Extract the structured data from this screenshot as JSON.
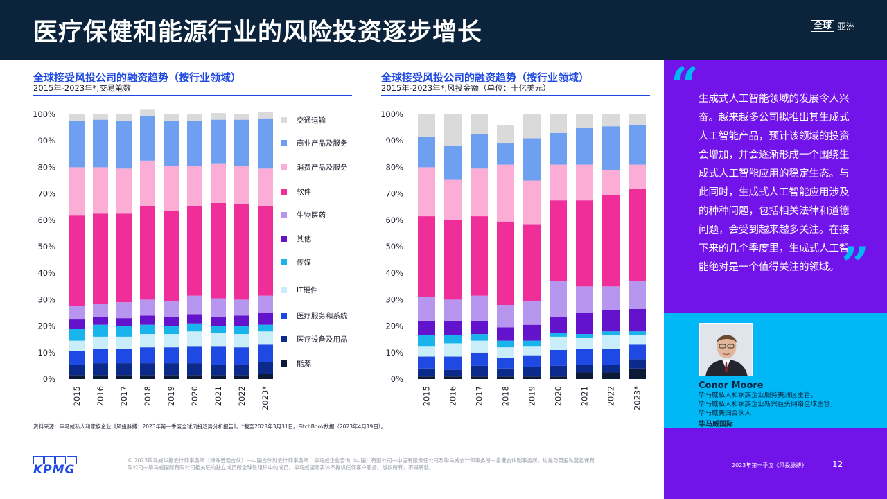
{
  "header": {
    "title": "医疗保健和能源行业的风险投资逐步增长",
    "brand_box": "全球",
    "brand_region": "亚洲"
  },
  "colors": {
    "header_bg": "#0c233c",
    "accent_blue": "#1e49e2",
    "purple": "#7213ea",
    "cyan": "#00b8f5"
  },
  "categories": [
    "交通运输",
    "商业产品及服务",
    "消费产品及服务",
    "软件",
    "生物医药",
    "其他",
    "传媒",
    "IT硬件",
    "医疗服务和系统",
    "医疗设备及用品",
    "能源"
  ],
  "category_colors": [
    "#dadada",
    "#6f9ff0",
    "#fcadd5",
    "#f02e9a",
    "#b696ee",
    "#6413cc",
    "#1ab4ec",
    "#c9eef9",
    "#1e49e2",
    "#0c2a8c",
    "#0c1a38"
  ],
  "chart_data": [
    {
      "type": "bar",
      "stacked": true,
      "title": "全球接受风投公司的融资趋势（按行业领域）",
      "subtitle": "2015年-2023年*,交易笔数",
      "x": [
        "2015",
        "2016",
        "2017",
        "2018",
        "2019",
        "2020",
        "2021",
        "2022",
        "2023*"
      ],
      "y_ticks": [
        "0%",
        "10%",
        "20%",
        "30%",
        "40%",
        "50%",
        "60%",
        "70%",
        "80%",
        "90%",
        "100%"
      ],
      "ylim": [
        0,
        100
      ],
      "series": [
        {
          "name": "能源",
          "values": [
            1.5,
            1.5,
            1.5,
            1.5,
            1.5,
            1.5,
            1.5,
            1.5,
            2
          ]
        },
        {
          "name": "医疗设备及用品",
          "values": [
            4,
            4.5,
            4.5,
            4.5,
            4.5,
            4.5,
            4,
            4,
            4.5
          ]
        },
        {
          "name": "医疗服务和系统",
          "values": [
            5,
            5.5,
            5.5,
            6,
            6,
            6.5,
            7,
            6.5,
            6.5
          ]
        },
        {
          "name": "IT硬件",
          "values": [
            4,
            4.5,
            4.5,
            5,
            5,
            5.5,
            5,
            5,
            5
          ]
        },
        {
          "name": "传媒",
          "values": [
            4.5,
            4.5,
            4,
            3.5,
            3,
            3,
            2.5,
            3,
            2.5
          ]
        },
        {
          "name": "其他",
          "values": [
            3.5,
            3,
            3,
            3.5,
            3.5,
            3.5,
            3.5,
            4,
            4.5
          ]
        },
        {
          "name": "生物医药",
          "values": [
            5,
            5,
            6,
            6,
            6,
            7,
            7,
            6,
            6.5
          ]
        },
        {
          "name": "软件",
          "values": [
            34.5,
            34,
            33.5,
            35.5,
            34,
            34,
            36,
            36,
            34
          ]
        },
        {
          "name": "消费产品及服务",
          "values": [
            18,
            17.5,
            17,
            17,
            17,
            15,
            15,
            14.5,
            14
          ]
        },
        {
          "name": "商业产品及服务",
          "values": [
            17.5,
            18,
            18,
            17,
            17,
            17,
            16.5,
            17.5,
            19
          ]
        },
        {
          "name": "交通运输",
          "values": [
            2.5,
            2,
            2.5,
            2.5,
            2.5,
            2.5,
            2.5,
            2,
            2.5
          ]
        }
      ]
    },
    {
      "type": "bar",
      "stacked": true,
      "title": "全球接受风投公司的融资趋势（按行业领域）",
      "subtitle": "2015年-2023年*,风投金额（单位：十亿美元）",
      "x": [
        "2015",
        "2016",
        "2017",
        "2018",
        "2019",
        "2020",
        "2021",
        "2022",
        "2023*"
      ],
      "y_ticks": [
        "0%",
        "10%",
        "20%",
        "30%",
        "40%",
        "50%",
        "60%",
        "70%",
        "80%",
        "90%",
        "100%"
      ],
      "ylim": [
        0,
        100
      ],
      "series": [
        {
          "name": "能源",
          "values": [
            1,
            1,
            1,
            1,
            1,
            1,
            2.5,
            2.5,
            4
          ]
        },
        {
          "name": "医疗设备及用品",
          "values": [
            3,
            2.5,
            4,
            3,
            3.5,
            4,
            3,
            3,
            3.5
          ]
        },
        {
          "name": "医疗服务和系统",
          "values": [
            4.5,
            5,
            5,
            4,
            4.5,
            6,
            6,
            6,
            5.5
          ]
        },
        {
          "name": "IT硬件",
          "values": [
            4,
            5,
            4.5,
            4,
            3.5,
            5,
            4,
            5,
            3.5
          ]
        },
        {
          "name": "传媒",
          "values": [
            4,
            3,
            2.5,
            2.5,
            2,
            1.5,
            1.5,
            1.5,
            1.5
          ]
        },
        {
          "name": "其他",
          "values": [
            5.5,
            5.5,
            5,
            5,
            6,
            6,
            8,
            8,
            8.5
          ]
        },
        {
          "name": "生物医药",
          "values": [
            9,
            8,
            9.5,
            8.5,
            9,
            13.5,
            10,
            9,
            10.5
          ]
        },
        {
          "name": "软件",
          "values": [
            30.5,
            30,
            30,
            31.5,
            29,
            30.5,
            32.5,
            34.5,
            35
          ]
        },
        {
          "name": "消费产品及服务",
          "values": [
            18.5,
            15.5,
            18,
            21.5,
            16.5,
            13.5,
            13.5,
            9.5,
            9
          ]
        },
        {
          "name": "商业产品及服务",
          "values": [
            11.5,
            12.5,
            13,
            8,
            16,
            12,
            14,
            16.5,
            15
          ]
        },
        {
          "name": "交通运输",
          "values": [
            8.5,
            12,
            7.5,
            7,
            9,
            7,
            5,
            4.5,
            4
          ]
        }
      ]
    }
  ],
  "source_note": "资料来源：毕马威私人和家族企业《风投脉搏：2023年第一季度全球风投趋势分析报告》。*截至2023年3月31日。PitchBook数据（2023年4月19日）。",
  "quote": {
    "text": "生成式人工智能领域的发展令人兴奋。越来越多公司拟推出其生成式人工智能产品，预计该领域的投资会增加，并会逐渐形成一个围绕生成式人工智能应用的稳定生态。与此同时，生成式人工智能应用涉及的种种问题，包括相关法律和道德问题，会受到越来越多关注。在接下来的几个季度里，生成式人工智能绝对是一个值得关注的领域。"
  },
  "person": {
    "name": "Conor Moore",
    "role_lines": [
      "毕马威私人和家族企业服务美洲区主管，",
      "毕马威私人和家族企业新兴巨头网络全球主管，",
      "毕马威美国合伙人"
    ],
    "org": "毕马威国际"
  },
  "footer": {
    "logo_text": "KPMG",
    "copyright": "© 2023毕马威华振会计师事务所（特殊普通合伙）—中国合伙制会计师事务所，毕马威企业咨询（中国）有限公司—中国有限责任公司及毕马威会计师事务所—香港合伙制事务所，均是与英国私营担保有限公司—毕马威国际有限公司相关联的独立成员所全球性组织中的成员。毕马威国际实体不提供任何客户服务。版权所有，不得转载。",
    "publication": "2023年第一季度《风投脉搏》",
    "page_number": "12"
  }
}
